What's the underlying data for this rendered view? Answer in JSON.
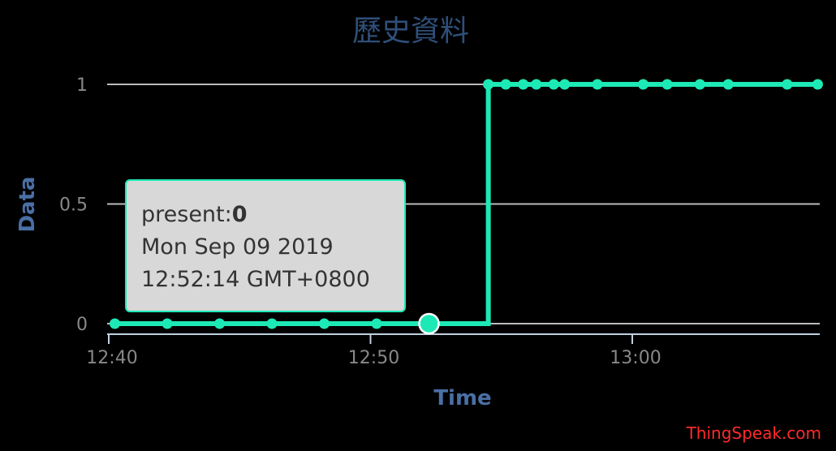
{
  "chart_data": {
    "type": "line",
    "title": "歷史資料",
    "xlabel": "Time",
    "ylabel": "Data",
    "x_tick_labels": [
      "12:40",
      "12:50",
      "13:00"
    ],
    "y_tick_labels": [
      "0",
      "0.5",
      "1"
    ],
    "ylim": [
      0,
      1
    ],
    "step": true,
    "grid": true,
    "legend": "none",
    "series": [
      {
        "x": [
          "12:40:14",
          "12:42:14",
          "12:44:14",
          "12:46:14",
          "12:48:14",
          "12:50:14",
          "12:52:14",
          "12:54:30",
          "12:55:10",
          "12:55:50",
          "12:56:20",
          "12:57:00",
          "12:57:25",
          "12:58:40",
          "13:00:25",
          "13:01:20",
          "13:02:35",
          "13:03:40",
          "13:05:55",
          "13:07:05"
        ],
        "values": [
          0,
          0,
          0,
          0,
          0,
          0,
          0,
          1,
          1,
          1,
          1,
          1,
          1,
          1,
          1,
          1,
          1,
          1,
          1,
          1
        ]
      }
    ],
    "highlighted_point_index": 6
  },
  "colors": {
    "series": "#1de9b6",
    "title": "#2f4f7a",
    "axis_title": "#4a6fa5",
    "tick": "#888888",
    "grid": "#bbbbbb",
    "credit": "#ff2a2a"
  },
  "tooltip": {
    "series_label": "present:",
    "value": "0",
    "date_line": "Mon Sep 09 2019",
    "time_line": "12:52:14 GMT+0800"
  },
  "credit": "ThingSpeak.com"
}
